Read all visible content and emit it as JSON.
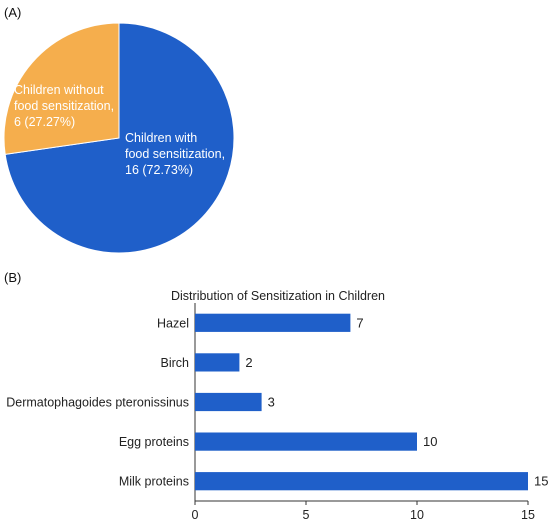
{
  "chart_data": [
    {
      "type": "pie",
      "panel": "(A)",
      "title": "",
      "slices": [
        {
          "label_lines": [
            "Children with",
            "food sensitization,",
            "16 (72.73%)"
          ],
          "value": 16,
          "percent": 72.73,
          "color": "#1f5fc9"
        },
        {
          "label_lines": [
            "Children without",
            "food sensitization,",
            "6 (27.27%)"
          ],
          "value": 6,
          "percent": 27.27,
          "color": "#f5ae4d"
        }
      ]
    },
    {
      "type": "bar",
      "orientation": "horizontal",
      "panel": "(B)",
      "title": "Distribution of Sensitization in Children",
      "categories": [
        "Hazel",
        "Birch",
        "Dermatophagoides pteronissinus",
        "Egg proteins",
        "Milk proteins"
      ],
      "values": [
        7,
        2,
        3,
        10,
        15
      ],
      "xlim": [
        0,
        15
      ],
      "xticks": [
        0,
        5,
        10,
        15
      ],
      "color": "#1f5fc9",
      "grid": false,
      "xlabel": "",
      "ylabel": ""
    }
  ]
}
